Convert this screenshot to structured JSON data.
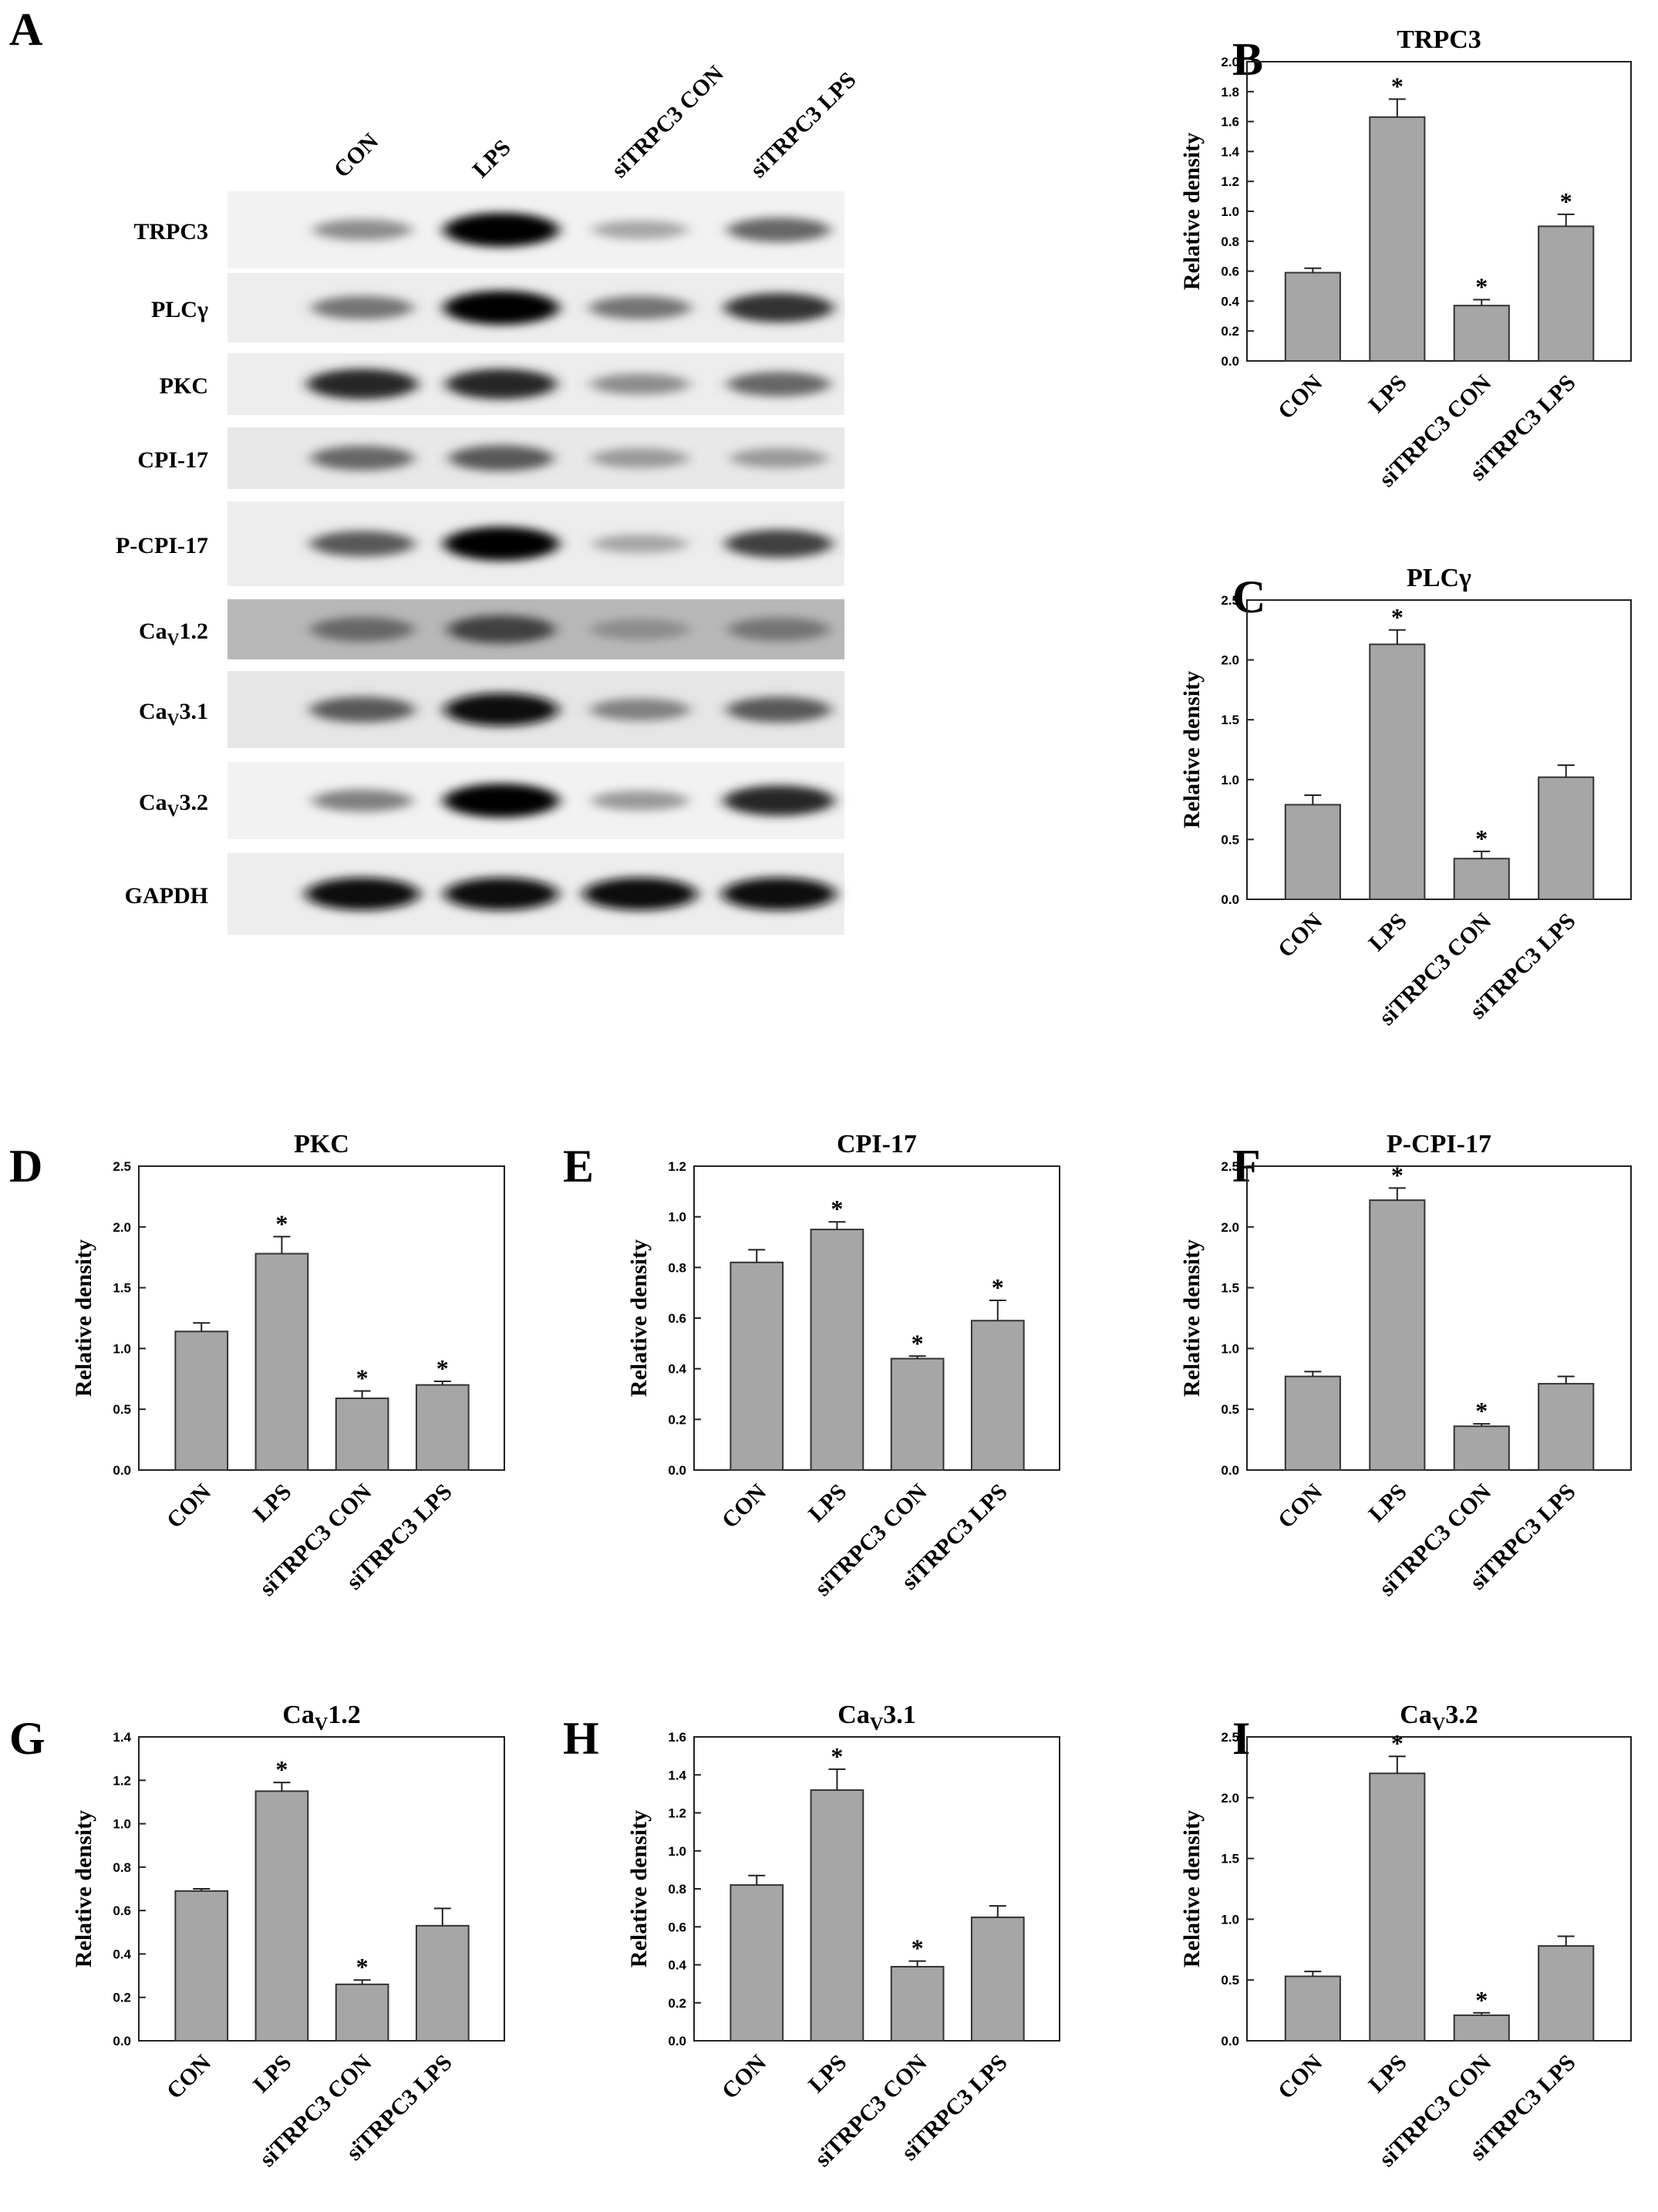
{
  "figure": {
    "panel_a": {
      "letter": "A",
      "lanes": [
        "CON",
        "LPS",
        "siTRPC3 CON",
        "siTRPC3 LPS"
      ],
      "rows": [
        {
          "label": "TRPC3",
          "sub": "",
          "tail": "",
          "intensity": [
            0.45,
            1.0,
            0.35,
            0.6
          ],
          "bg": 0.95
        },
        {
          "label": "PLC",
          "sub": "",
          "tail": "γ",
          "intensity": [
            0.55,
            1.0,
            0.55,
            0.8
          ],
          "bg": 0.93
        },
        {
          "label": "PKC",
          "sub": "",
          "tail": "",
          "intensity": [
            0.85,
            0.85,
            0.45,
            0.6
          ],
          "bg": 0.93
        },
        {
          "label": "CPI-17",
          "sub": "",
          "tail": "",
          "intensity": [
            0.6,
            0.65,
            0.4,
            0.4
          ],
          "bg": 0.91
        },
        {
          "label": "P-CPI-17",
          "sub": "",
          "tail": "",
          "intensity": [
            0.65,
            1.0,
            0.35,
            0.75
          ],
          "bg": 0.93
        },
        {
          "label": "Ca",
          "sub": "V",
          "tail": "1.2",
          "intensity": [
            0.6,
            0.75,
            0.45,
            0.55
          ],
          "bg": 0.72
        },
        {
          "label": "Ca",
          "sub": "V",
          "tail": "3.1",
          "intensity": [
            0.65,
            0.95,
            0.5,
            0.65
          ],
          "bg": 0.9
        },
        {
          "label": "Ca",
          "sub": "V",
          "tail": "3.2",
          "intensity": [
            0.5,
            1.0,
            0.4,
            0.85
          ],
          "bg": 0.95
        },
        {
          "label": "GAPDH",
          "sub": "",
          "tail": "",
          "intensity": [
            0.95,
            0.95,
            0.95,
            0.95
          ],
          "bg": 0.93
        }
      ]
    }
  },
  "chart_data": [
    {
      "panel": "B",
      "type": "bar",
      "title": "TRPC3",
      "title_sub": "",
      "title_tail": "",
      "ylabel": "Relative density",
      "categories": [
        "CON",
        "LPS",
        "siTRPC3 CON",
        "siTRPC3 LPS"
      ],
      "values": [
        0.59,
        1.63,
        0.37,
        0.9
      ],
      "errors": [
        0.03,
        0.12,
        0.04,
        0.08
      ],
      "significant": [
        false,
        true,
        true,
        true
      ],
      "ylim": [
        0,
        2.0
      ],
      "yticks": [
        "0.0",
        "0.2",
        "0.4",
        "0.6",
        "0.8",
        "1.0",
        "1.2",
        "1.4",
        "1.6",
        "1.8",
        "2.0"
      ],
      "marker": "*",
      "bar_color": "#a6a6a6"
    },
    {
      "panel": "C",
      "type": "bar",
      "title": "PLC",
      "title_sub": "",
      "title_tail": "γ",
      "ylabel": "Relative density",
      "categories": [
        "CON",
        "LPS",
        "siTRPC3 CON",
        "siTRPC3 LPS"
      ],
      "values": [
        0.79,
        2.13,
        0.34,
        1.02
      ],
      "errors": [
        0.08,
        0.12,
        0.06,
        0.1
      ],
      "significant": [
        false,
        true,
        true,
        false
      ],
      "ylim": [
        0,
        2.5
      ],
      "yticks": [
        "0.0",
        "0.5",
        "1.0",
        "1.5",
        "2.0",
        "2.5"
      ],
      "marker": "*",
      "bar_color": "#a6a6a6"
    },
    {
      "panel": "D",
      "type": "bar",
      "title": "PKC",
      "title_sub": "",
      "title_tail": "",
      "ylabel": "Relative density",
      "categories": [
        "CON",
        "LPS",
        "siTRPC3 CON",
        "siTRPC3 LPS"
      ],
      "values": [
        1.14,
        1.78,
        0.59,
        0.7
      ],
      "errors": [
        0.07,
        0.14,
        0.06,
        0.03
      ],
      "significant": [
        false,
        true,
        true,
        true
      ],
      "ylim": [
        0,
        2.5
      ],
      "yticks": [
        "0.0",
        "0.5",
        "1.0",
        "1.5",
        "2.0",
        "2.5"
      ],
      "marker": "*",
      "bar_color": "#a6a6a6"
    },
    {
      "panel": "E",
      "type": "bar",
      "title": "CPI-17",
      "title_sub": "",
      "title_tail": "",
      "ylabel": "Relative density",
      "categories": [
        "CON",
        "LPS",
        "siTRPC3 CON",
        "siTRPC3 LPS"
      ],
      "values": [
        0.82,
        0.95,
        0.44,
        0.59
      ],
      "errors": [
        0.05,
        0.03,
        0.01,
        0.08
      ],
      "significant": [
        false,
        true,
        true,
        true
      ],
      "ylim": [
        0,
        1.2
      ],
      "yticks": [
        "0.0",
        "0.2",
        "0.4",
        "0.6",
        "0.8",
        "1.0",
        "1.2"
      ],
      "marker": "*",
      "bar_color": "#a6a6a6"
    },
    {
      "panel": "F",
      "type": "bar",
      "title": "P-CPI-17",
      "title_sub": "",
      "title_tail": "",
      "ylabel": "Relative density",
      "categories": [
        "CON",
        "LPS",
        "siTRPC3 CON",
        "siTRPC3 LPS"
      ],
      "values": [
        0.77,
        2.22,
        0.36,
        0.71
      ],
      "errors": [
        0.04,
        0.1,
        0.02,
        0.06
      ],
      "significant": [
        false,
        true,
        true,
        false
      ],
      "ylim": [
        0,
        2.5
      ],
      "yticks": [
        "0.0",
        "0.5",
        "1.0",
        "1.5",
        "2.0",
        "2.5"
      ],
      "marker": "*",
      "bar_color": "#a6a6a6"
    },
    {
      "panel": "G",
      "type": "bar",
      "title": "Ca",
      "title_sub": "V",
      "title_tail": "1.2",
      "ylabel": "Relative density",
      "categories": [
        "CON",
        "LPS",
        "siTRPC3 CON",
        "siTRPC3 LPS"
      ],
      "values": [
        0.69,
        1.15,
        0.26,
        0.53
      ],
      "errors": [
        0.01,
        0.04,
        0.02,
        0.08
      ],
      "significant": [
        false,
        true,
        true,
        false
      ],
      "ylim": [
        0,
        1.4
      ],
      "yticks": [
        "0.0",
        "0.2",
        "0.4",
        "0.6",
        "0.8",
        "1.0",
        "1.2",
        "1.4"
      ],
      "marker": "*",
      "bar_color": "#a6a6a6"
    },
    {
      "panel": "H",
      "type": "bar",
      "title": "Ca",
      "title_sub": "V",
      "title_tail": "3.1",
      "ylabel": "Relative density",
      "categories": [
        "CON",
        "LPS",
        "siTRPC3 CON",
        "siTRPC3 LPS"
      ],
      "values": [
        0.82,
        1.32,
        0.39,
        0.65
      ],
      "errors": [
        0.05,
        0.11,
        0.03,
        0.06
      ],
      "significant": [
        false,
        true,
        true,
        false
      ],
      "ylim": [
        0,
        1.6
      ],
      "yticks": [
        "0.0",
        "0.2",
        "0.4",
        "0.6",
        "0.8",
        "1.0",
        "1.2",
        "1.4",
        "1.6"
      ],
      "marker": "*",
      "bar_color": "#a6a6a6"
    },
    {
      "panel": "I",
      "type": "bar",
      "title": "Ca",
      "title_sub": "V",
      "title_tail": "3.2",
      "ylabel": "Relative density",
      "categories": [
        "CON",
        "LPS",
        "siTRPC3 CON",
        "siTRPC3 LPS"
      ],
      "values": [
        0.53,
        2.2,
        0.21,
        0.78
      ],
      "errors": [
        0.04,
        0.14,
        0.02,
        0.08
      ],
      "significant": [
        false,
        true,
        true,
        false
      ],
      "ylim": [
        0,
        2.5
      ],
      "yticks": [
        "0.0",
        "0.5",
        "1.0",
        "1.5",
        "2.0",
        "2.5"
      ],
      "marker": "*",
      "bar_color": "#a6a6a6"
    }
  ]
}
